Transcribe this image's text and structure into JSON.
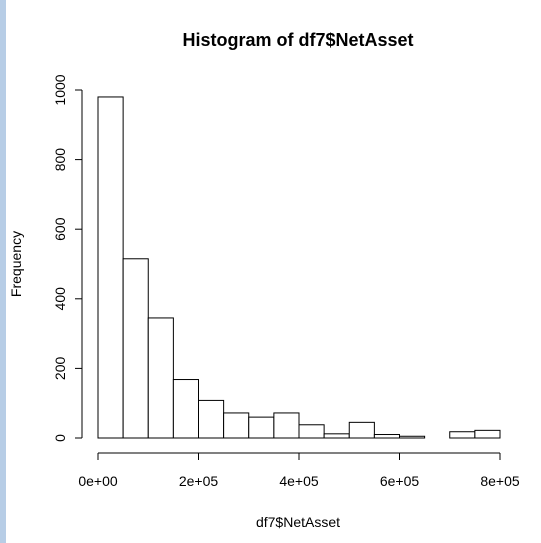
{
  "chart_data": {
    "type": "bar",
    "title": "Histogram of df7$NetAsset",
    "xlabel": "df7$NetAsset",
    "ylabel": "Frequency",
    "xlim": [
      0,
      800000
    ],
    "ylim": [
      0,
      1000
    ],
    "bin_width": 50000,
    "bins": [
      {
        "x0": 0,
        "x1": 50000,
        "count": 980
      },
      {
        "x0": 50000,
        "x1": 100000,
        "count": 515
      },
      {
        "x0": 100000,
        "x1": 150000,
        "count": 345
      },
      {
        "x0": 150000,
        "x1": 200000,
        "count": 168
      },
      {
        "x0": 200000,
        "x1": 250000,
        "count": 108
      },
      {
        "x0": 250000,
        "x1": 300000,
        "count": 72
      },
      {
        "x0": 300000,
        "x1": 350000,
        "count": 60
      },
      {
        "x0": 350000,
        "x1": 400000,
        "count": 72
      },
      {
        "x0": 400000,
        "x1": 450000,
        "count": 38
      },
      {
        "x0": 450000,
        "x1": 500000,
        "count": 12
      },
      {
        "x0": 500000,
        "x1": 550000,
        "count": 45
      },
      {
        "x0": 550000,
        "x1": 600000,
        "count": 10
      },
      {
        "x0": 600000,
        "x1": 650000,
        "count": 5
      },
      {
        "x0": 650000,
        "x1": 700000,
        "count": 0
      },
      {
        "x0": 700000,
        "x1": 750000,
        "count": 18
      },
      {
        "x0": 750000,
        "x1": 800000,
        "count": 22
      }
    ],
    "x_ticks": [
      {
        "value": 0,
        "label": "0e+00"
      },
      {
        "value": 200000,
        "label": "2e+05"
      },
      {
        "value": 400000,
        "label": "4e+05"
      },
      {
        "value": 600000,
        "label": "6e+05"
      },
      {
        "value": 800000,
        "label": "8e+05"
      }
    ],
    "y_ticks": [
      {
        "value": 0,
        "label": "0"
      },
      {
        "value": 200,
        "label": "200"
      },
      {
        "value": 400,
        "label": "400"
      },
      {
        "value": 600,
        "label": "600"
      },
      {
        "value": 800,
        "label": "800"
      },
      {
        "value": 1000,
        "label": "1000"
      }
    ],
    "grid": false,
    "colors": {
      "bar_fill": "#ffffff",
      "bar_stroke": "#000000"
    }
  }
}
